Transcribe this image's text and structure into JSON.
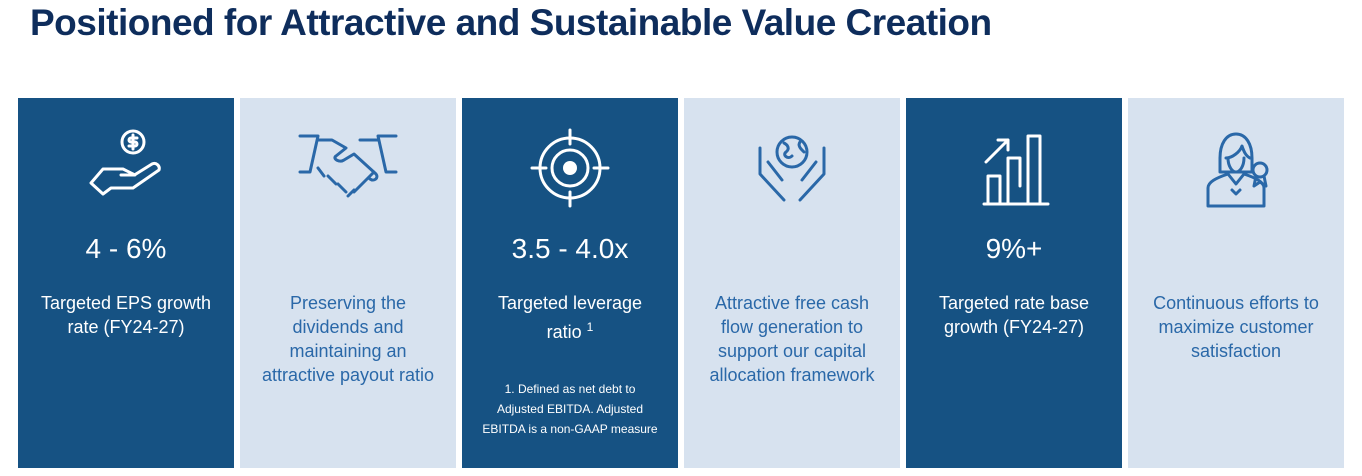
{
  "header": {
    "title": "Positioned for Attractive and Sustainable Value Creation"
  },
  "cards": [
    {
      "metric": "4 - 6%",
      "label": "Targeted EPS growth rate (FY24-27)"
    },
    {
      "label": "Preserving the dividends and maintaining an attractive payout ratio"
    },
    {
      "metric": "3.5 - 4.0x",
      "label": "Targeted leverage ratio",
      "superscript": "1",
      "footnote": "1. Defined as net debt to Adjusted EBITDA. Adjusted EBITDA is a non-GAAP measure"
    },
    {
      "label": "Attractive free cash flow generation to support our capital allocation framework"
    },
    {
      "metric": "9%+",
      "label": "Targeted rate base growth (FY24-27)"
    },
    {
      "label": "Continuous efforts to maximize customer satisfaction"
    }
  ]
}
